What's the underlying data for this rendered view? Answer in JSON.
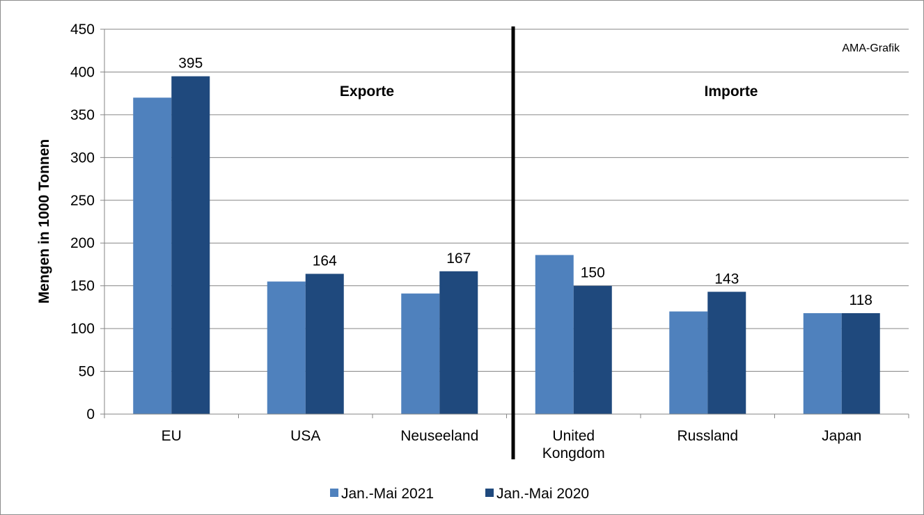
{
  "chart_data": {
    "type": "bar",
    "categories": [
      "EU",
      "USA",
      "Neuseeland",
      "United Kongdom",
      "Russland",
      "Japan"
    ],
    "category_lines": [
      [
        "EU"
      ],
      [
        "USA"
      ],
      [
        "Neuseeland"
      ],
      [
        "United",
        "Kongdom"
      ],
      [
        "Russland"
      ],
      [
        "Japan"
      ]
    ],
    "series": [
      {
        "name": "Jan.-Mai 2021",
        "color": "#4f81bd",
        "values": [
          370,
          155,
          141,
          186,
          120,
          118
        ],
        "labels": [
          null,
          null,
          null,
          null,
          null,
          null
        ]
      },
      {
        "name": "Jan.-Mai 2020",
        "color": "#1f497d",
        "values": [
          395,
          164,
          167,
          150,
          143,
          118
        ],
        "labels": [
          "395",
          "164",
          "167",
          "150",
          "143",
          "118"
        ]
      }
    ],
    "ylabel": "Mengen in 1000 Tonnen",
    "ylim": [
      0,
      450
    ],
    "yticks": [
      0,
      50,
      100,
      150,
      200,
      250,
      300,
      350,
      400,
      450
    ],
    "grid": true,
    "legend_position": "bottom",
    "annotations": {
      "source": "AMA-Grafik",
      "exports": "Exporte",
      "imports": "Importe"
    }
  }
}
